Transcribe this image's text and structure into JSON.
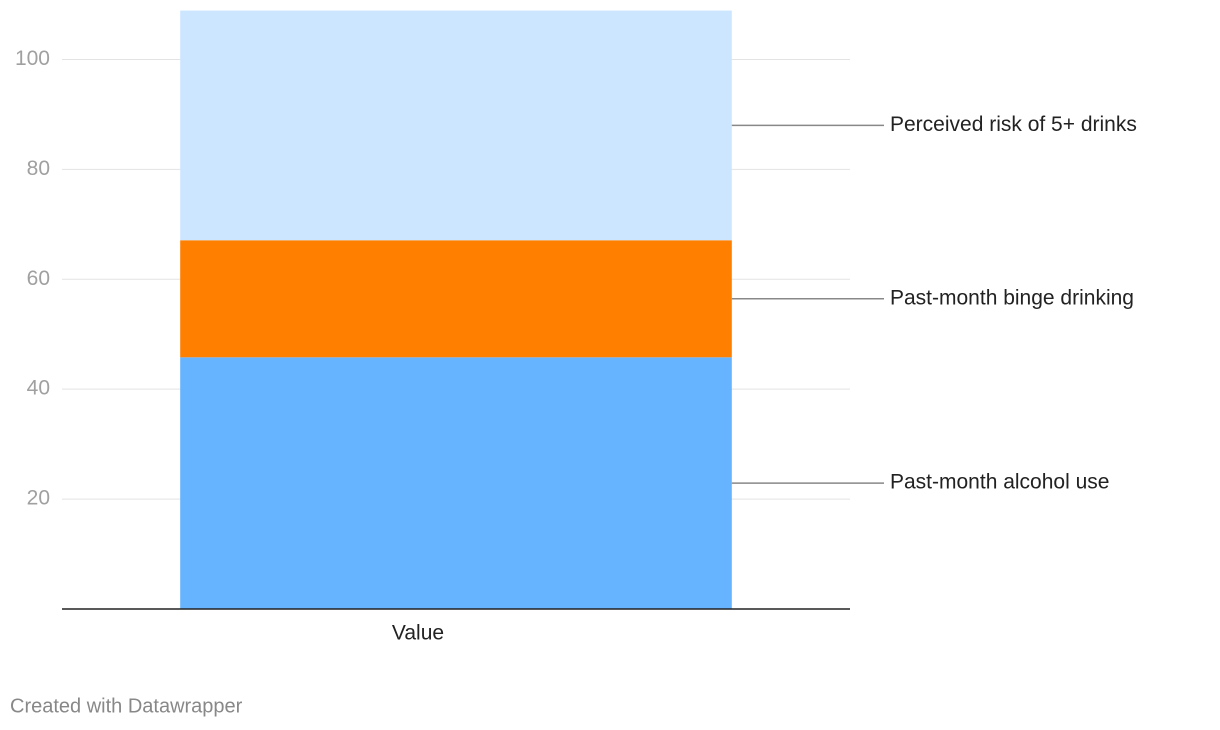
{
  "chart_data": {
    "type": "stacked_bar",
    "categories": [
      "Value"
    ],
    "series": [
      {
        "name": "Past-month alcohol use",
        "color": "#66b3ff",
        "values": [
          45.8
        ]
      },
      {
        "name": "Past-month binge drinking",
        "color": "#ff7f00",
        "values": [
          21.3
        ]
      },
      {
        "name": "Perceived risk of 5+ drinks",
        "color": "#cce6ff",
        "values": [
          41.8
        ]
      }
    ],
    "ylim": [
      0,
      109
    ],
    "yticks": [
      20,
      40,
      60,
      80,
      100
    ],
    "grid": true,
    "credit": "Created with Datawrapper"
  }
}
